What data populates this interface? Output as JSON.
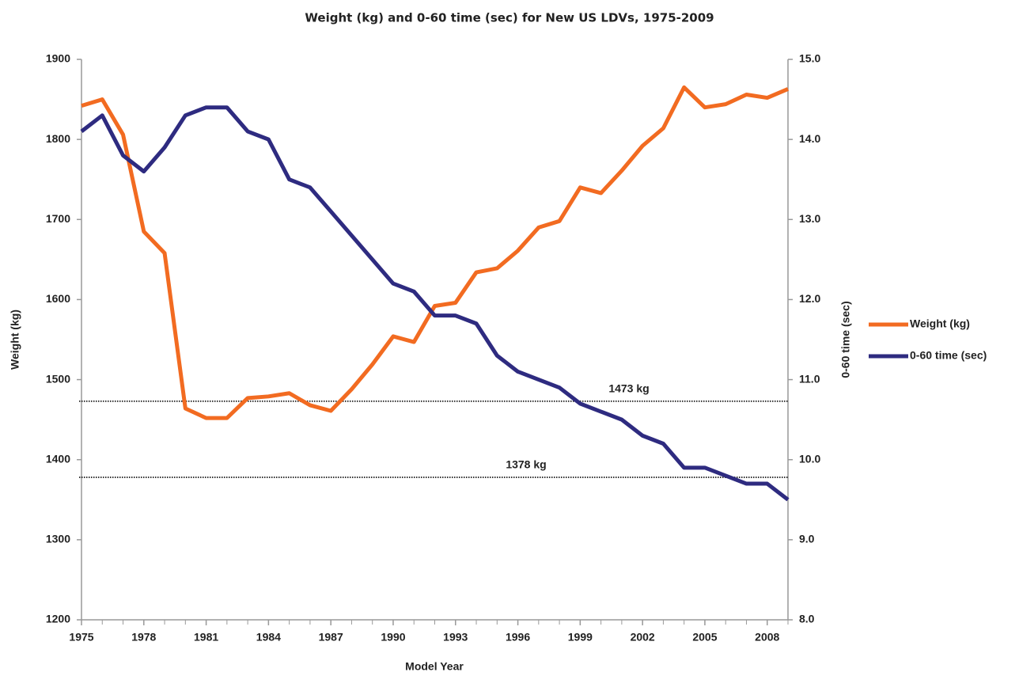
{
  "chart_data": {
    "type": "line",
    "title": "Weight (kg) and 0-60 time (sec) for New US LDVs, 1975-2009",
    "x_label": "Model Year",
    "y_label": "Weight (kg)",
    "y2_label": "0-60 time (sec)",
    "x": [
      1975,
      1976,
      1977,
      1978,
      1979,
      1980,
      1981,
      1982,
      1983,
      1984,
      1985,
      1986,
      1987,
      1988,
      1989,
      1990,
      1991,
      1992,
      1993,
      1994,
      1995,
      1996,
      1997,
      1998,
      1999,
      2000,
      2001,
      2002,
      2003,
      2004,
      2005,
      2006,
      2007,
      2008,
      2009
    ],
    "series": [
      {
        "name": "Weight (kg)",
        "color": "#f26b21",
        "values": [
          1842,
          1850,
          1806,
          1685,
          1658,
          1464,
          1452,
          1452,
          1477,
          1479,
          1483,
          1468,
          1461,
          1488,
          1519,
          1554,
          1547,
          1592,
          1596,
          1634,
          1639,
          1661,
          1690,
          1698,
          1740,
          1733,
          1761,
          1792,
          1814,
          1865,
          1840,
          1844,
          1856,
          1852,
          1863
        ]
      },
      {
        "name": "0-60 time (sec)",
        "color": "#2e2b80",
        "axis": "y2",
        "values": [
          14.1,
          14.3,
          13.8,
          13.6,
          13.9,
          14.3,
          14.4,
          14.4,
          14.1,
          14.0,
          13.5,
          13.4,
          13.1,
          12.8,
          12.5,
          12.2,
          12.1,
          11.8,
          11.8,
          11.7,
          11.3,
          11.1,
          11.0,
          10.9,
          10.7,
          10.6,
          10.5,
          10.3,
          10.2,
          9.9,
          9.9,
          9.8,
          9.7,
          9.7,
          9.5
        ]
      }
    ],
    "xlim": [
      1975,
      2009
    ],
    "xticks": [
      1975,
      1978,
      1981,
      1984,
      1987,
      1990,
      1993,
      1996,
      1999,
      2002,
      2005,
      2008
    ],
    "ylim": [
      1200,
      1900
    ],
    "yticks": [
      1200,
      1300,
      1400,
      1500,
      1600,
      1700,
      1800,
      1900
    ],
    "y2lim": [
      8,
      15
    ],
    "y2ticks": [
      {
        "value": 8,
        "label": "8.0"
      },
      {
        "value": 9,
        "label": "9.0"
      },
      {
        "value": 10,
        "label": "10.0"
      },
      {
        "value": 11,
        "label": "11.0"
      },
      {
        "value": 12,
        "label": "12.0"
      },
      {
        "value": 13,
        "label": "13.0"
      },
      {
        "value": 14,
        "label": "14.0"
      },
      {
        "value": 15,
        "label": "15.0"
      }
    ],
    "reference_lines": [
      {
        "value": 1473,
        "label": "1473 kg"
      },
      {
        "value": 1378,
        "label": "1378 kg"
      }
    ],
    "grid": false,
    "legend": "right"
  }
}
